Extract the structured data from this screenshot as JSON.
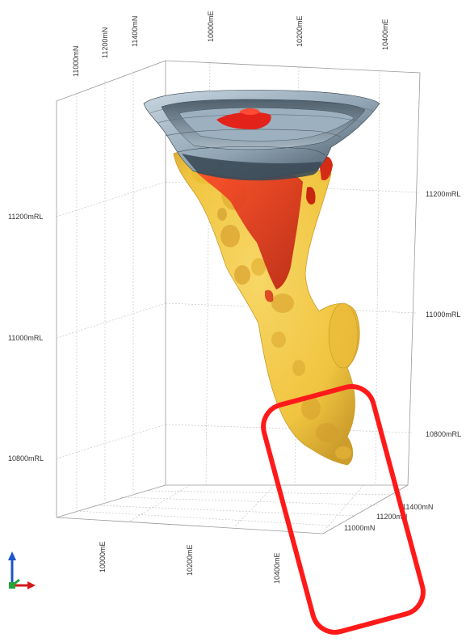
{
  "colors": {
    "background": "#ffffff",
    "grid": "#bdbdbd",
    "pit_light": "#b9cad6",
    "pit_dark": "#3e4e5b",
    "orebody_yellow": "#f2c531",
    "orebody_red": "#e3331c",
    "highlight_box": "#ff1a1a",
    "axis_x": "#d11818",
    "axis_y": "#1a55c8",
    "axis_z": "#23a33a"
  },
  "labels": {
    "top_north": [
      "11000mN",
      "11200mN",
      "11400mN"
    ],
    "top_east": [
      "10000mE",
      "10200mE",
      "10400mE"
    ],
    "left_rl": [
      "11200mRL",
      "11000mRL",
      "10800mRL"
    ],
    "right_rl": [
      "11200mRL",
      "11000mRL",
      "10800mRL"
    ],
    "bottom_east": [
      "10000mE",
      "10200mE",
      "10400mE"
    ],
    "bottom_north": [
      "11400mN",
      "11200mN",
      "11000mN"
    ]
  },
  "icons": {
    "axis_triad": "xyz-axis-triad-icon"
  },
  "annotation": {
    "type": "rounded-rectangle-highlight"
  }
}
